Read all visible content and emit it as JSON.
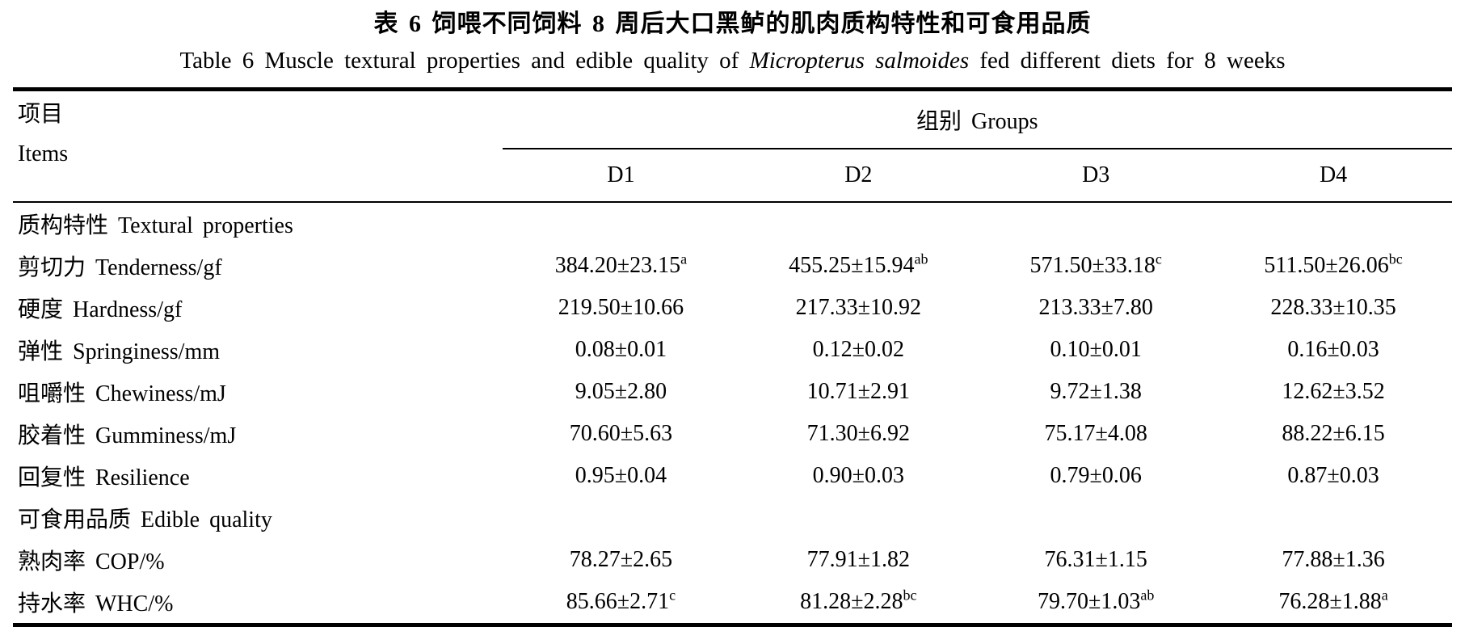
{
  "titles": {
    "chinese": "表 6  饲喂不同饲料 8 周后大口黑鲈的肌肉质构特性和可食用品质",
    "english_prefix": "Table 6  Muscle textural properties and edible quality of ",
    "english_species": "Micropterus salmoides",
    "english_suffix": " fed different diets for 8 weeks"
  },
  "table": {
    "items_header_cn": "项目",
    "items_header_en": "Items",
    "groups_header": "组别 Groups",
    "group_columns": [
      "D1",
      "D2",
      "D3",
      "D4"
    ],
    "rows": [
      {
        "type": "section",
        "label": "质构特性 Textural properties",
        "values": []
      },
      {
        "type": "data",
        "label": "剪切力 Tenderness/gf",
        "values": [
          "384.20±23.15^a",
          "455.25±15.94^ab",
          "571.50±33.18^c",
          "511.50±26.06^bc"
        ]
      },
      {
        "type": "data",
        "label": "硬度 Hardness/gf",
        "values": [
          "219.50±10.66",
          "217.33±10.92",
          "213.33±7.80",
          "228.33±10.35"
        ]
      },
      {
        "type": "data",
        "label": "弹性 Springiness/mm",
        "values": [
          "0.08±0.01",
          "0.12±0.02",
          "0.10±0.01",
          "0.16±0.03"
        ]
      },
      {
        "type": "data",
        "label": "咀嚼性 Chewiness/mJ",
        "values": [
          "9.05±2.80",
          "10.71±2.91",
          "9.72±1.38",
          "12.62±3.52"
        ]
      },
      {
        "type": "data",
        "label": "胶着性 Gumminess/mJ",
        "values": [
          "70.60±5.63",
          "71.30±6.92",
          "75.17±4.08",
          "88.22±6.15"
        ]
      },
      {
        "type": "data",
        "label": "回复性 Resilience",
        "values": [
          "0.95±0.04",
          "0.90±0.03",
          "0.79±0.06",
          "0.87±0.03"
        ]
      },
      {
        "type": "section",
        "label": "可食用品质 Edible quality",
        "values": []
      },
      {
        "type": "data",
        "label": "熟肉率 COP/%",
        "values": [
          "78.27±2.65",
          "77.91±1.82",
          "76.31±1.15",
          "77.88±1.36"
        ]
      },
      {
        "type": "data",
        "label": "持水率 WHC/%",
        "values": [
          "85.66±2.71^c",
          "81.28±2.28^bc",
          "79.70±1.03^ab",
          "76.28±1.88^a"
        ]
      }
    ]
  }
}
